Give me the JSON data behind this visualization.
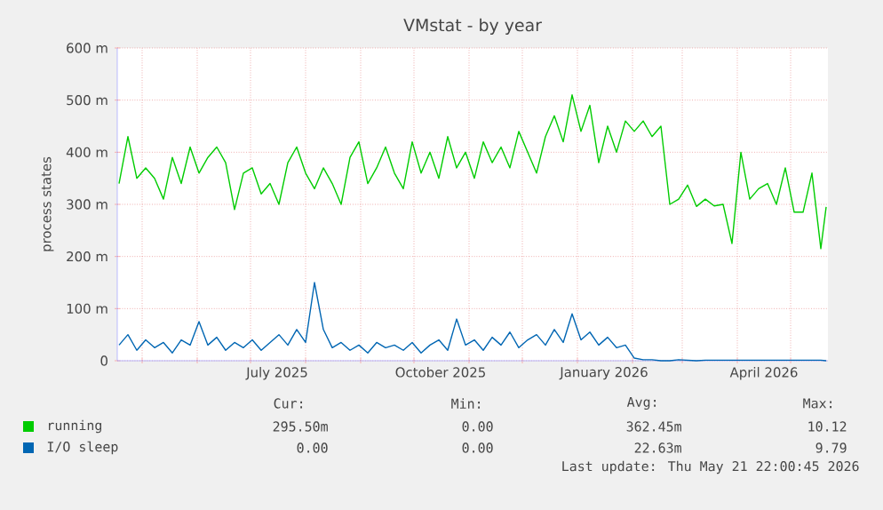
{
  "chart_data": {
    "type": "line",
    "title": "VMstat - by year",
    "ylabel": "process states",
    "x": [
      "2025-04-18",
      "2025-04-23",
      "2025-04-28",
      "2025-05-03",
      "2025-05-08",
      "2025-05-13",
      "2025-05-18",
      "2025-05-23",
      "2025-05-28",
      "2025-06-02",
      "2025-06-07",
      "2025-06-12",
      "2025-06-17",
      "2025-06-22",
      "2025-06-27",
      "2025-07-02",
      "2025-07-07",
      "2025-07-12",
      "2025-07-17",
      "2025-07-22",
      "2025-07-27",
      "2025-08-01",
      "2025-08-06",
      "2025-08-11",
      "2025-08-16",
      "2025-08-21",
      "2025-08-26",
      "2025-08-31",
      "2025-09-05",
      "2025-09-10",
      "2025-09-15",
      "2025-09-20",
      "2025-09-25",
      "2025-09-30",
      "2025-10-05",
      "2025-10-10",
      "2025-10-15",
      "2025-10-20",
      "2025-10-25",
      "2025-10-30",
      "2025-11-04",
      "2025-11-09",
      "2025-11-14",
      "2025-11-19",
      "2025-11-24",
      "2025-11-29",
      "2025-12-04",
      "2025-12-09",
      "2025-12-14",
      "2025-12-19",
      "2025-12-24",
      "2025-12-29",
      "2026-01-03",
      "2026-01-08",
      "2026-01-13",
      "2026-01-18",
      "2026-01-23",
      "2026-01-28",
      "2026-02-02",
      "2026-02-07",
      "2026-02-12",
      "2026-02-17",
      "2026-02-22",
      "2026-02-27",
      "2026-03-04",
      "2026-03-09",
      "2026-03-14",
      "2026-03-19",
      "2026-03-24",
      "2026-03-29",
      "2026-04-03",
      "2026-04-08",
      "2026-04-13",
      "2026-04-18",
      "2026-04-23",
      "2026-04-28",
      "2026-05-03",
      "2026-05-08",
      "2026-05-13",
      "2026-05-18",
      "2026-05-21"
    ],
    "series": [
      {
        "name": "running",
        "color": "#00cc00",
        "values": [
          340,
          430,
          350,
          370,
          350,
          310,
          390,
          340,
          410,
          360,
          390,
          410,
          380,
          290,
          360,
          370,
          320,
          340,
          300,
          380,
          410,
          360,
          330,
          370,
          340,
          300,
          390,
          420,
          340,
          370,
          410,
          360,
          330,
          420,
          360,
          400,
          350,
          430,
          370,
          400,
          350,
          420,
          380,
          410,
          370,
          440,
          400,
          360,
          430,
          470,
          420,
          510,
          440,
          490,
          380,
          450,
          400,
          460,
          440,
          460,
          430,
          450,
          300,
          310,
          337,
          296,
          310,
          297,
          300,
          225,
          400,
          310,
          330,
          340,
          300,
          370,
          285,
          285,
          360,
          215,
          295
        ]
      },
      {
        "name": "I/O sleep",
        "color": "#0066b3",
        "values": [
          30,
          50,
          20,
          40,
          25,
          35,
          15,
          40,
          30,
          75,
          30,
          45,
          20,
          35,
          25,
          40,
          20,
          35,
          50,
          30,
          60,
          35,
          150,
          60,
          25,
          35,
          20,
          30,
          15,
          35,
          25,
          30,
          20,
          35,
          15,
          30,
          40,
          20,
          80,
          30,
          40,
          20,
          45,
          30,
          55,
          25,
          40,
          50,
          30,
          60,
          35,
          90,
          40,
          55,
          30,
          45,
          25,
          30,
          5,
          2,
          2,
          0,
          0,
          2,
          1,
          0,
          1,
          1,
          1,
          1,
          1,
          1,
          1,
          1,
          1,
          1,
          1,
          1,
          1,
          1,
          0
        ]
      }
    ],
    "xlim": [
      "2025-04-17",
      "2026-05-22"
    ],
    "xticks": [
      {
        "value": "2025-05-01",
        "label": null
      },
      {
        "value": "2025-06-01",
        "label": null
      },
      {
        "value": "2025-07-01",
        "label": null
      },
      {
        "value": "2025-08-01",
        "label": null
      },
      {
        "value": "2025-09-01",
        "label": null
      },
      {
        "value": "2025-10-01",
        "label": null
      },
      {
        "value": "2025-11-01",
        "label": null
      },
      {
        "value": "2025-12-01",
        "label": null
      },
      {
        "value": "2026-01-01",
        "label": null
      },
      {
        "value": "2026-02-01",
        "label": null
      },
      {
        "value": "2026-03-01",
        "label": null
      },
      {
        "value": "2026-04-01",
        "label": null
      },
      {
        "value": "2026-05-01",
        "label": null
      },
      {
        "value": "2025-07-16",
        "label": "July 2025"
      },
      {
        "value": "2025-10-16",
        "label": "October 2025"
      },
      {
        "value": "2026-01-16",
        "label": "January 2026"
      },
      {
        "value": "2026-04-16",
        "label": "April 2026"
      }
    ],
    "ylim": [
      0,
      600
    ],
    "yticks": [
      0,
      {
        "value": 100,
        "label": "100 m"
      },
      {
        "value": 200,
        "label": "200 m"
      },
      {
        "value": 300,
        "label": "300 m"
      },
      {
        "value": 400,
        "label": "400 m"
      },
      {
        "value": 500,
        "label": "500 m"
      },
      {
        "value": 600,
        "label": "600 m"
      }
    ],
    "grid": true,
    "legend": "bottom",
    "annotations": [
      "Cur:",
      "Min:",
      "Avg:",
      "Max:",
      "295.50m",
      "0.00",
      "362.45m",
      "10.12",
      "0.00",
      "0.00",
      "22.63m",
      "9.79",
      "Last update: Thu May 21 22:00:45 2026"
    ]
  }
}
